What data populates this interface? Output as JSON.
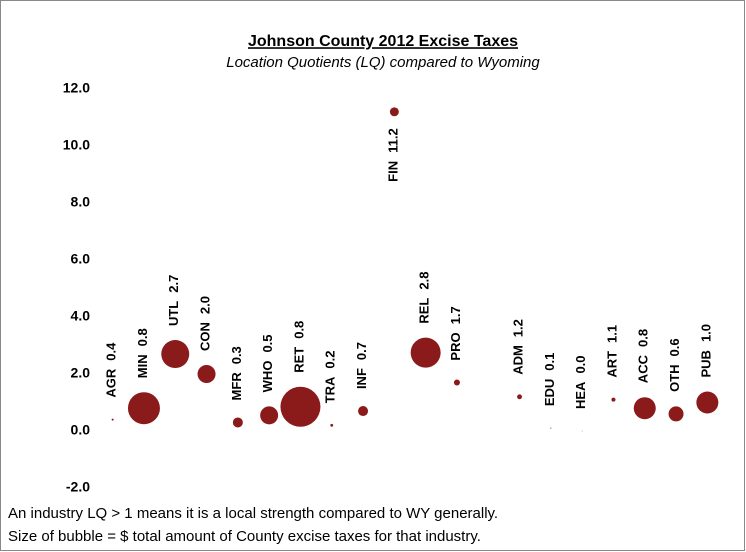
{
  "chart_data": {
    "type": "bubble",
    "title": "Johnson County 2012 Excise Taxes",
    "subtitle": "Location Quotients (LQ) compared to Wyoming",
    "categories": [
      "AGR",
      "MIN",
      "UTL",
      "CON",
      "MFR",
      "WHO",
      "RET",
      "TRA",
      "INF",
      "FIN",
      "REL",
      "PRO",
      null,
      "ADM",
      "EDU",
      "HEA",
      "ART",
      "ACC",
      "OTH",
      "PUB"
    ],
    "values": [
      0.4,
      0.8,
      2.7,
      2.0,
      0.3,
      0.55,
      0.85,
      0.2,
      0.7,
      11.2,
      2.75,
      1.7,
      null,
      1.2,
      0.1,
      0.0,
      1.1,
      0.8,
      0.6,
      1.0
    ],
    "value_labels": [
      "0.4",
      "0.8",
      "2.7",
      "2.0",
      "0.3",
      "0.5",
      "0.8",
      "0.2",
      "0.7",
      "11.2",
      "2.8",
      "1.7",
      null,
      "1.2",
      "0.1",
      "0.0",
      "1.1",
      "0.8",
      "0.6",
      "1.0"
    ],
    "sizes": [
      1,
      256,
      196,
      81,
      25,
      81,
      400,
      2,
      25,
      20,
      225,
      9,
      null,
      6,
      0.3,
      0.1,
      4,
      121,
      56,
      121
    ],
    "color": "#8b1a1a",
    "ylim": [
      -2,
      12
    ],
    "yticks": [
      {
        "value": -2,
        "label": "-2.0"
      },
      {
        "value": 0,
        "label": "0.0"
      },
      {
        "value": 2,
        "label": "2.0"
      },
      {
        "value": 4,
        "label": "4.0"
      },
      {
        "value": 6,
        "label": "6.0"
      },
      {
        "value": 8,
        "label": "8.0"
      },
      {
        "value": 10,
        "label": "10.0"
      },
      {
        "value": 12,
        "label": "12.0"
      }
    ],
    "notes": [
      "An industry LQ > 1 means it is a local strength compared to WY generally.",
      "Size of bubble = $ total amount of County excise taxes for that industry."
    ]
  }
}
